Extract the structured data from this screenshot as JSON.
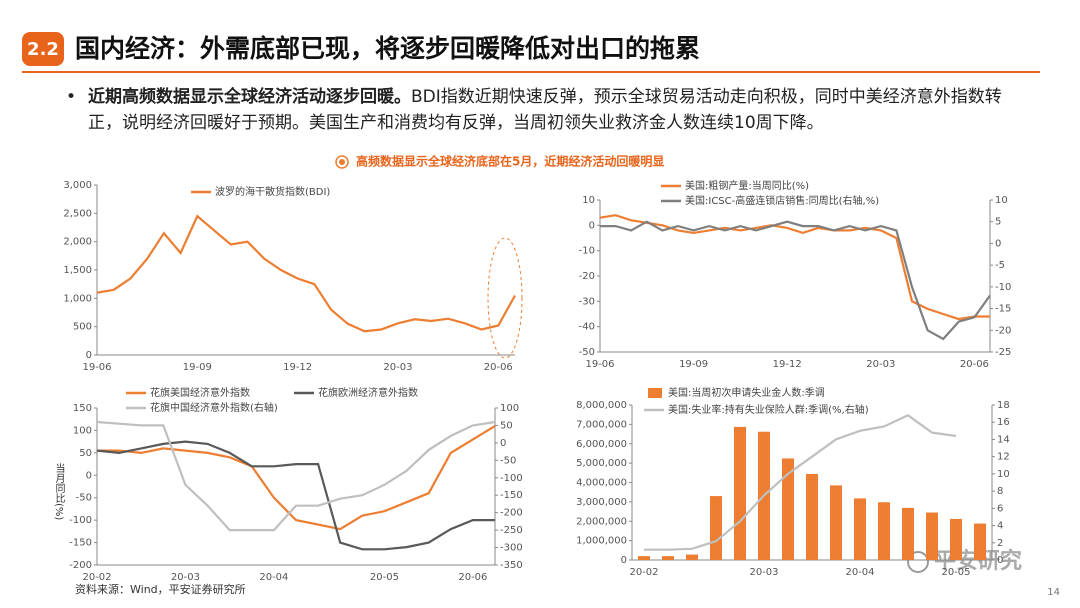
{
  "header": {
    "number": "2.2",
    "title": "国内经济：外需底部已现，将逐步回暖降低对出口的拖累"
  },
  "bullet": {
    "bold": "近期高频数据显示全球经济活动逐步回暖。",
    "text": "BDI指数近期快速反弹，预示全球贸易活动走向积极，同时中美经济意外指数转正，说明经济回暖好于预期。美国生产和消费均有反弹，当周初领失业救济金人数连续10周下降。"
  },
  "chart_title": "高频数据显示全球经济底部在5月，近期经济活动回暖明显",
  "source": "资料来源：Wind，平安证券研究所",
  "page_number": "14",
  "watermark": "平安研究",
  "chart_data": [
    {
      "type": "line",
      "categories": [
        "19-06",
        null,
        null,
        null,
        null,
        null,
        "19-09",
        null,
        null,
        null,
        null,
        null,
        "19-12",
        null,
        null,
        null,
        null,
        null,
        "20-03",
        null,
        null,
        null,
        null,
        null,
        "20-06",
        null
      ],
      "series": [
        {
          "name": "波罗的海干散货指数(BDI)",
          "color": "#ED7D31",
          "values": [
            1100,
            1150,
            1350,
            1700,
            2150,
            1800,
            2450,
            2200,
            1950,
            2000,
            1700,
            1500,
            1350,
            1250,
            800,
            550,
            420,
            450,
            560,
            630,
            600,
            640,
            560,
            450,
            520,
            1050
          ]
        }
      ],
      "ylim": [
        0,
        3000
      ],
      "yticks": [
        0,
        500,
        {
          "value": 1000,
          "label": "1,000"
        },
        {
          "value": 1500,
          "label": "1,500"
        },
        {
          "value": 2000,
          "label": "2,000"
        },
        {
          "value": 2500,
          "label": "2,500"
        },
        {
          "value": 3000,
          "label": "3,000"
        }
      ]
    },
    {
      "type": "line",
      "categories": [
        "19-06",
        null,
        null,
        null,
        null,
        null,
        "19-09",
        null,
        null,
        null,
        null,
        null,
        "19-12",
        null,
        null,
        null,
        null,
        null,
        "20-03",
        null,
        null,
        null,
        null,
        null,
        "20-06",
        null
      ],
      "series": [
        {
          "name": "美国:粗钢产量:当周同比(%)",
          "color": "#ED7D31",
          "values": [
            3,
            4,
            2,
            1,
            0,
            -2,
            -3,
            -2,
            -1,
            -2,
            -1,
            0,
            -1,
            -3,
            -1,
            -2,
            -2,
            -1,
            -2,
            -5,
            -30,
            -33,
            -35,
            -37,
            -36,
            -36
          ]
        },
        {
          "name": "美国:ICSC-高盛连锁店销售:同周比(右轴,%)",
          "color": "#7F7F7F",
          "axis": "y2",
          "values": [
            4,
            4,
            3,
            5,
            3,
            4,
            3,
            4,
            3,
            4,
            3,
            4,
            5,
            4,
            4,
            3,
            4,
            3,
            4,
            3,
            -10,
            -20,
            -22,
            -18,
            -17,
            -12
          ]
        }
      ],
      "ylim": [
        -50,
        10
      ],
      "yticks": [
        -50,
        -40,
        -30,
        -20,
        -10,
        0,
        10
      ],
      "y2lim": [
        -25,
        10
      ],
      "y2ticks": [
        -25,
        -20,
        -15,
        -10,
        -5,
        0,
        5,
        10
      ]
    },
    {
      "type": "line",
      "y_label": "当月同比(%)",
      "categories": [
        "20-02",
        null,
        null,
        null,
        "20-03",
        null,
        null,
        null,
        "20-04",
        null,
        null,
        null,
        null,
        "20-05",
        null,
        null,
        null,
        "20-06",
        null
      ],
      "series": [
        {
          "name": "花旗美国经济意外指数",
          "color": "#ED7D31",
          "values": [
            55,
            55,
            50,
            60,
            55,
            50,
            40,
            20,
            -50,
            -100,
            -110,
            -120,
            -90,
            -80,
            -60,
            -40,
            50,
            80,
            110
          ]
        },
        {
          "name": "花旗欧洲经济意外指数",
          "color": "#595959",
          "values": [
            55,
            50,
            60,
            70,
            75,
            70,
            50,
            20,
            20,
            25,
            25,
            -150,
            -165,
            -165,
            -160,
            -150,
            -120,
            -100,
            -100
          ]
        },
        {
          "name": "花旗中国经济意外指数(右轴)",
          "color": "#BFBFBF",
          "axis": "y2",
          "values": [
            60,
            55,
            50,
            50,
            -120,
            -180,
            -250,
            -250,
            -250,
            -180,
            -180,
            -160,
            -150,
            -120,
            -80,
            -20,
            20,
            50,
            60
          ]
        }
      ],
      "ylim": [
        -200,
        150
      ],
      "yticks": [
        -200,
        -150,
        -100,
        -50,
        0,
        50,
        100,
        150
      ],
      "y2lim": [
        -350,
        100
      ],
      "y2ticks": [
        -350,
        -300,
        -250,
        -200,
        -150,
        -100,
        -50,
        0,
        50,
        100
      ]
    },
    {
      "type": "bar",
      "categories": [
        "20-02",
        null,
        null,
        null,
        null,
        "20-03",
        null,
        null,
        null,
        "20-04",
        null,
        null,
        null,
        "20-05",
        null
      ],
      "series": [
        {
          "name": "美国:当周初次申请失业金人数:季调",
          "color": "#ED7D31",
          "type": "bar",
          "values": [
            200000,
            200000,
            280000,
            3300000,
            6870000,
            6620000,
            5240000,
            4440000,
            3850000,
            3180000,
            2980000,
            2690000,
            2450000,
            2120000,
            1880000
          ]
        },
        {
          "name": "美国:失业率:持有失业保险人群:季调(%,右轴)",
          "color": "#BFBFBF",
          "type": "line",
          "axis": "y2",
          "values": [
            1.2,
            1.2,
            1.3,
            2.2,
            4.5,
            7.5,
            10,
            12,
            14,
            15,
            15.5,
            16.8,
            14.8,
            14.4,
            null
          ]
        }
      ],
      "ylim": [
        0,
        8000000
      ],
      "yticks": [
        0,
        {
          "value": 1000000,
          "label": "1,000,000"
        },
        {
          "value": 2000000,
          "label": "2,000,000"
        },
        {
          "value": 3000000,
          "label": "3,000,000"
        },
        {
          "value": 4000000,
          "label": "4,000,000"
        },
        {
          "value": 5000000,
          "label": "5,000,000"
        },
        {
          "value": 6000000,
          "label": "6,000,000"
        },
        {
          "value": 7000000,
          "label": "7,000,000"
        },
        {
          "value": 8000000,
          "label": "8,000,000"
        }
      ],
      "y2lim": [
        0,
        18
      ],
      "y2ticks": [
        0,
        2,
        4,
        6,
        8,
        10,
        12,
        14,
        16,
        18
      ]
    }
  ]
}
